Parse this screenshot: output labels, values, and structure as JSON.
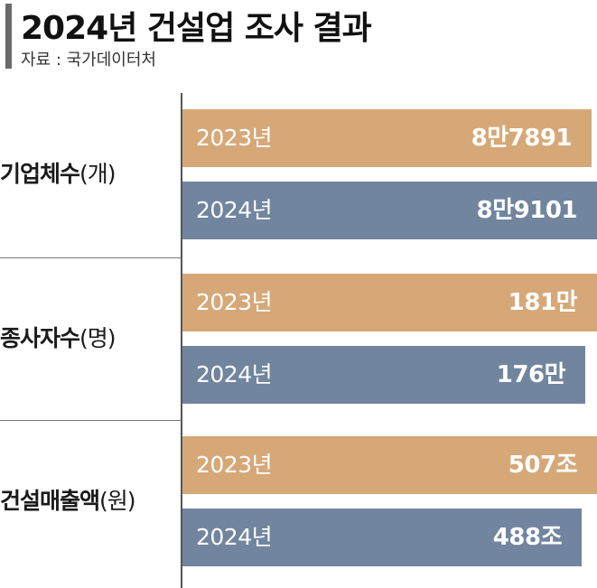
{
  "header": {
    "title": "2024년 건설업 조사 결과",
    "source": "자료 : 국가데이터처"
  },
  "colors": {
    "y2023": "#d6a878",
    "y2024": "#71859f"
  },
  "chart_data": {
    "type": "bar",
    "orientation": "horizontal",
    "groups": [
      {
        "label": "기업체수",
        "unit": "(개)",
        "bars": [
          {
            "year": "2023년",
            "value": 87891,
            "value_label": "8만7891"
          },
          {
            "year": "2024년",
            "value": 89101,
            "value_label": "8만9101"
          }
        ]
      },
      {
        "label": "종사자수",
        "unit": "(명)",
        "bars": [
          {
            "year": "2023년",
            "value": 1810000,
            "value_label": "181만"
          },
          {
            "year": "2024년",
            "value": 1760000,
            "value_label": "176만"
          }
        ]
      },
      {
        "label": "건설매출액",
        "unit": "(원)",
        "bars": [
          {
            "year": "2023년",
            "value": 507,
            "value_label": "507조"
          },
          {
            "year": "2024년",
            "value": 488,
            "value_label": "488조"
          }
        ]
      }
    ]
  }
}
